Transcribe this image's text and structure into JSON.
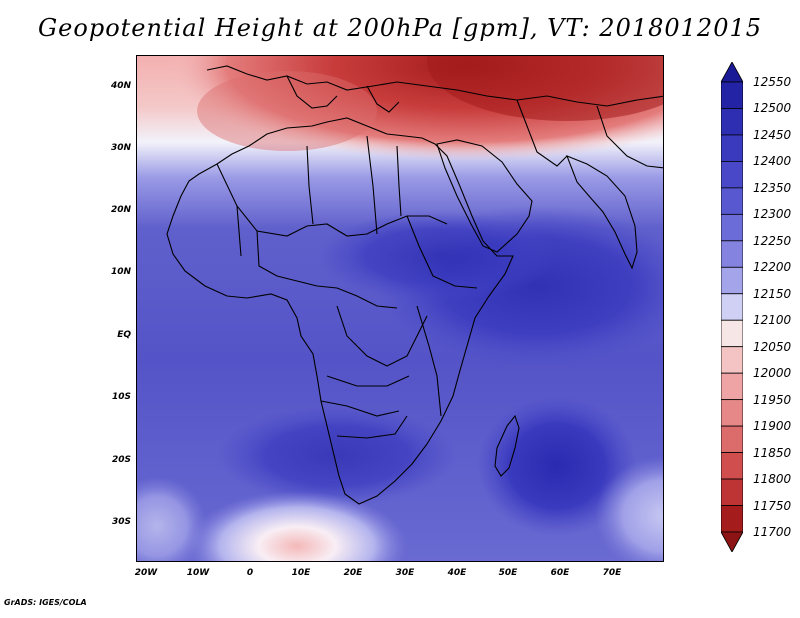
{
  "title": "Geopotential Height at 200hPa [gpm], VT: 2018012015",
  "credit": "GrADS: IGES/COLA",
  "map": {
    "lat_labels": [
      "40N",
      "30N",
      "20N",
      "10N",
      "EQ",
      "10S",
      "20S",
      "30S"
    ],
    "lon_labels": [
      "20W",
      "10W",
      "0",
      "10E",
      "20E",
      "30E",
      "40E",
      "50E",
      "60E",
      "70E"
    ],
    "high_color": "#1c1c9e",
    "low_color": "#a01818"
  },
  "colorbar": {
    "labels": [
      "12550",
      "12500",
      "12450",
      "12400",
      "12350",
      "12300",
      "12250",
      "12200",
      "12150",
      "12100",
      "12050",
      "12000",
      "11950",
      "11900",
      "11850",
      "11800",
      "11750",
      "11700"
    ],
    "colors": [
      "#1a1a96",
      "#2323a6",
      "#2e2eb3",
      "#3a3abf",
      "#4848c8",
      "#5858d0",
      "#6c6cd8",
      "#8484e0",
      "#a4a4ea",
      "#d0d0f4",
      "#f6e6e6",
      "#f4c4c4",
      "#eea4a4",
      "#e68888",
      "#dc6c6c",
      "#d04e4e",
      "#be3434",
      "#a41c1c",
      "#8c1414"
    ]
  }
}
